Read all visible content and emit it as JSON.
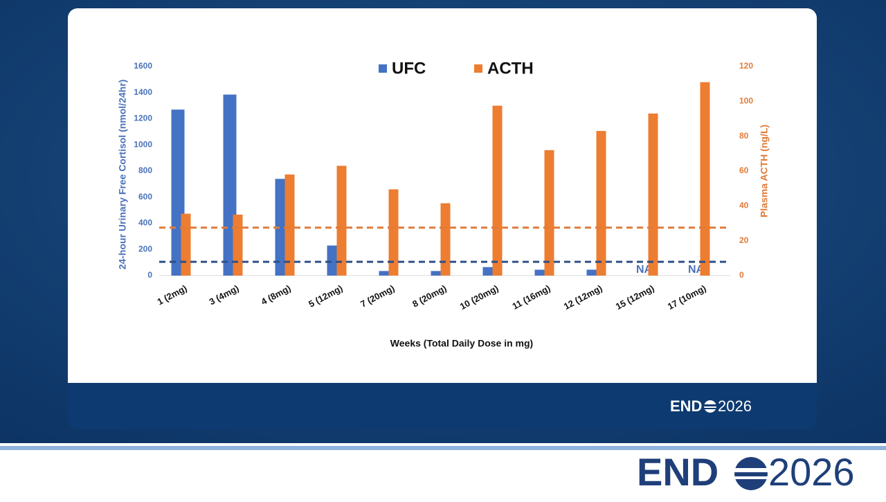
{
  "chart_data": {
    "type": "bar",
    "x_label": "Weeks (Total Daily Dose in mg)",
    "y_label": "24-hour Urinary Free Cortisol (nmol/24hr)",
    "y2_label": "Plasma ACTH (ng/L)",
    "categories": [
      "1 (2mg)",
      "3 (4mg)",
      "4 (8mg)",
      "5 (12mg)",
      "7 (20mg)",
      "8 (20mg)",
      "10 (20mg)",
      "11 (16mg)",
      "12 (12mg)",
      "15 (12mg)",
      "17 (10mg)"
    ],
    "series": [
      {
        "name": "UFC",
        "color": "#4472c4",
        "values": [
          1270,
          1385,
          740,
          230,
          35,
          35,
          65,
          45,
          45,
          null,
          null
        ],
        "value_labels": [
          null,
          null,
          null,
          null,
          null,
          null,
          null,
          null,
          null,
          "NA",
          "NA"
        ]
      },
      {
        "name": "ACTH",
        "color": "#ed7d31",
        "axis": "y2",
        "values": [
          35.5,
          35,
          58,
          63,
          49.5,
          41.5,
          97.5,
          72,
          83,
          93,
          111
        ]
      }
    ],
    "reference_lines": [
      {
        "axis": "y",
        "value": 105,
        "color": "#2f4f86"
      },
      {
        "axis": "y2",
        "value": 27.5,
        "color": "#e07b39"
      }
    ],
    "ylim": [
      0,
      1600
    ],
    "yticks": [
      0,
      200,
      400,
      600,
      800,
      1000,
      1200,
      1400,
      1600
    ],
    "y2lim": [
      0,
      120
    ],
    "y2ticks": [
      0,
      20,
      40,
      60,
      80,
      100,
      120
    ],
    "legend": "top"
  },
  "branding": {
    "panel_logo": {
      "bold": "END",
      "light": "2026"
    },
    "footer_logo": {
      "bold": "END",
      "light": "2026"
    }
  }
}
